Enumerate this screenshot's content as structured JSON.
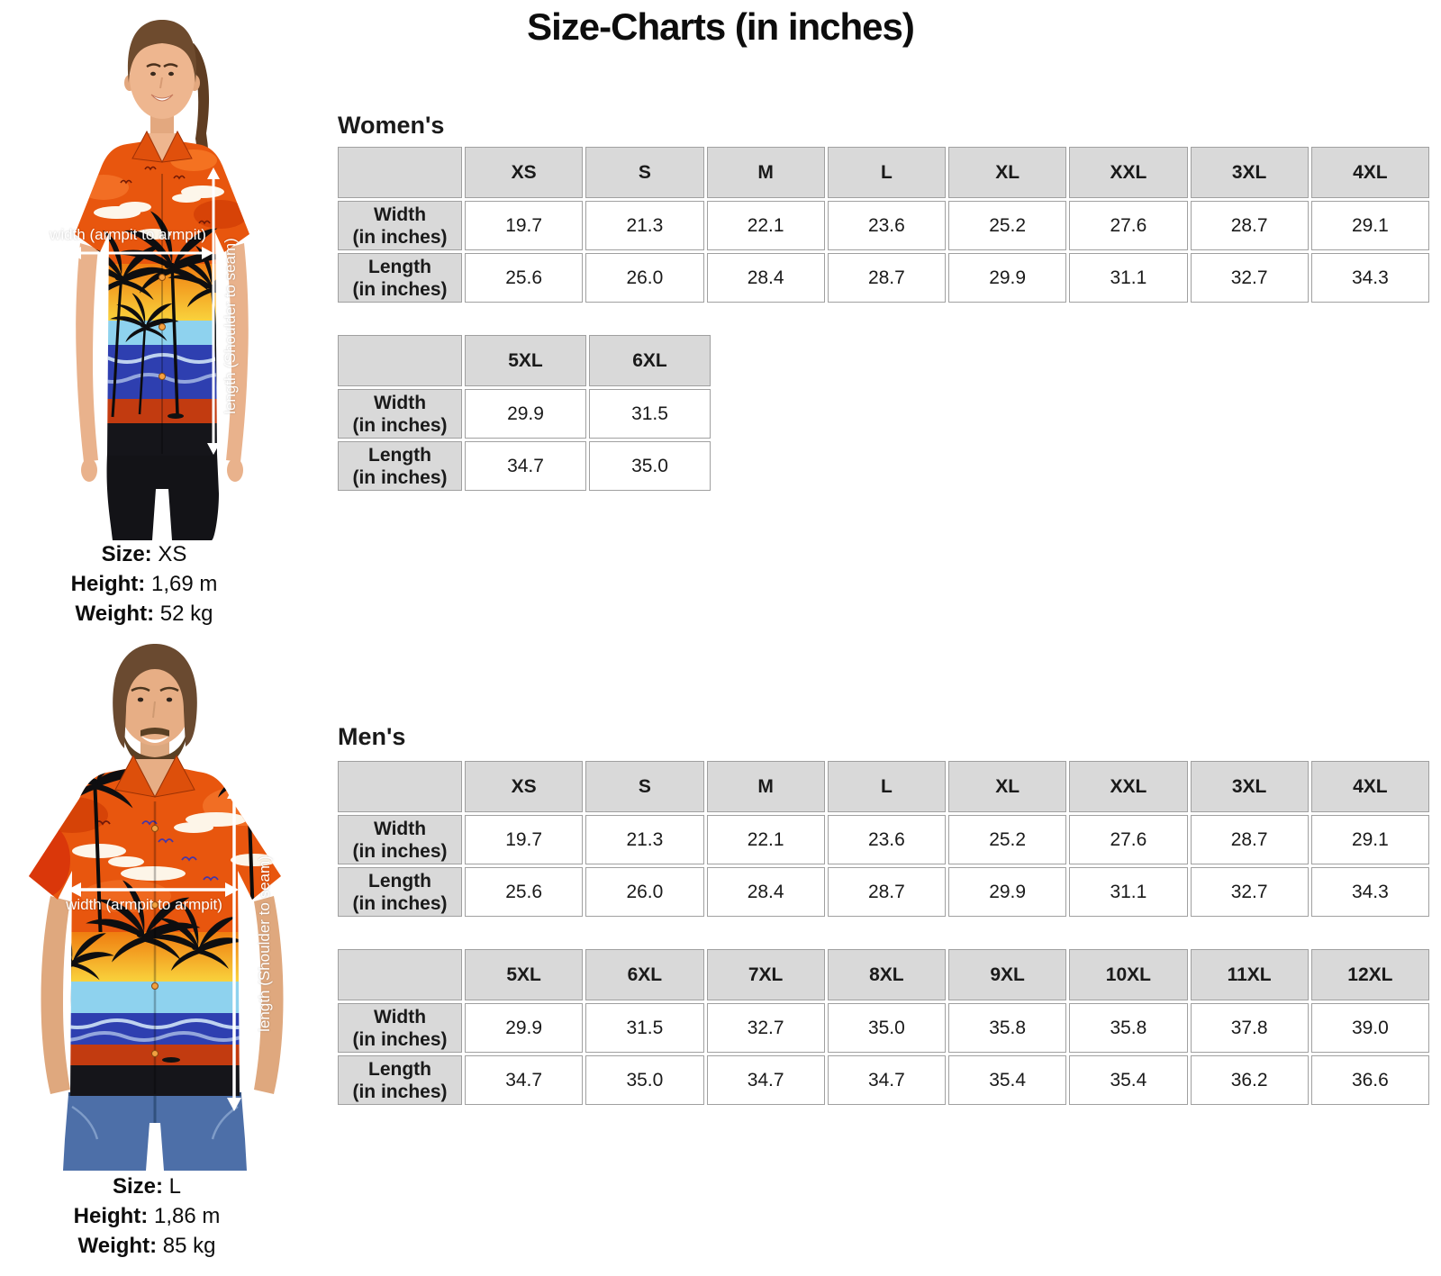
{
  "title": "Size-Charts (in inches)",
  "annotations": {
    "width_label": "width (armpit to armpit)",
    "length_label": "length (Shoulder to seam)"
  },
  "colors": {
    "table_header_bg": "#d9d9d9",
    "table_border": "#a0a0a0",
    "shirt_orange": "#e8560e",
    "annotation_text": "#ffffff"
  },
  "women": {
    "heading": "Women's",
    "model": {
      "size_label": "Size:",
      "size": " XS",
      "height_label": "Height:",
      "height": " 1,69 m",
      "weight_label": "Weight:",
      "weight": " 52 kg"
    },
    "table1": {
      "columns": [
        "XS",
        "S",
        "M",
        "L",
        "XL",
        "XXL",
        "3XL",
        "4XL"
      ],
      "rows": [
        {
          "label": "Width",
          "sublabel": "(in inches)",
          "values": [
            "19.7",
            "21.3",
            "22.1",
            "23.6",
            "25.2",
            "27.6",
            "28.7",
            "29.1"
          ]
        },
        {
          "label": "Length",
          "sublabel": "(in inches)",
          "values": [
            "25.6",
            "26.0",
            "28.4",
            "28.7",
            "29.9",
            "31.1",
            "32.7",
            "34.3"
          ]
        }
      ]
    },
    "table2": {
      "columns": [
        "5XL",
        "6XL"
      ],
      "rows": [
        {
          "label": "Width",
          "sublabel": "(in inches)",
          "values": [
            "29.9",
            "31.5"
          ]
        },
        {
          "label": "Length",
          "sublabel": "(in inches)",
          "values": [
            "34.7",
            "35.0"
          ]
        }
      ]
    }
  },
  "men": {
    "heading": "Men's",
    "model": {
      "size_label": "Size:",
      "size": " L",
      "height_label": "Height:",
      "height": " 1,86 m",
      "weight_label": "Weight:",
      "weight": " 85 kg"
    },
    "table1": {
      "columns": [
        "XS",
        "S",
        "M",
        "L",
        "XL",
        "XXL",
        "3XL",
        "4XL"
      ],
      "rows": [
        {
          "label": "Width",
          "sublabel": "(in inches)",
          "values": [
            "19.7",
            "21.3",
            "22.1",
            "23.6",
            "25.2",
            "27.6",
            "28.7",
            "29.1"
          ]
        },
        {
          "label": "Length",
          "sublabel": "(in inches)",
          "values": [
            "25.6",
            "26.0",
            "28.4",
            "28.7",
            "29.9",
            "31.1",
            "32.7",
            "34.3"
          ]
        }
      ]
    },
    "table2": {
      "columns": [
        "5XL",
        "6XL",
        "7XL",
        "8XL",
        "9XL",
        "10XL",
        "11XL",
        "12XL"
      ],
      "rows": [
        {
          "label": "Width",
          "sublabel": "(in inches)",
          "values": [
            "29.9",
            "31.5",
            "32.7",
            "35.0",
            "35.8",
            "35.8",
            "37.8",
            "39.0"
          ]
        },
        {
          "label": "Length",
          "sublabel": "(in inches)",
          "values": [
            "34.7",
            "35.0",
            "34.7",
            "34.7",
            "35.4",
            "35.4",
            "36.2",
            "36.6"
          ]
        }
      ]
    }
  }
}
